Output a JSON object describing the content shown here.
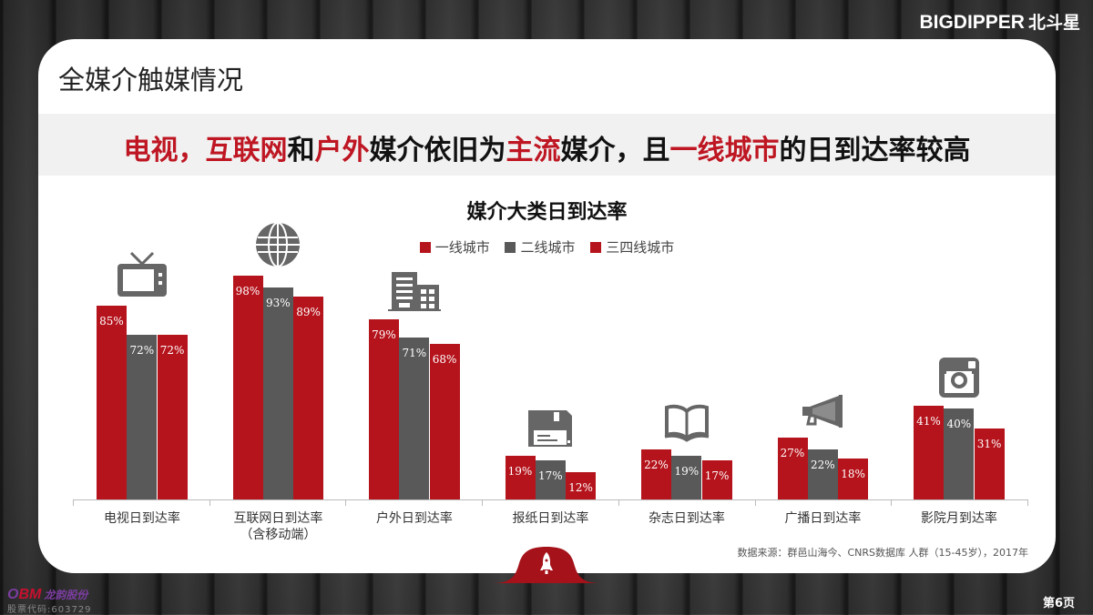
{
  "brand": {
    "latin": "BIGDIPPER",
    "cn": "北斗星"
  },
  "slide": {
    "title": "全媒介触媒情况",
    "headline": [
      {
        "text": "电视，",
        "highlight": true
      },
      {
        "text": "互联网",
        "highlight": true
      },
      {
        "text": "和",
        "highlight": false
      },
      {
        "text": "户外",
        "highlight": true
      },
      {
        "text": "媒介依旧为",
        "highlight": false
      },
      {
        "text": "主流",
        "highlight": true
      },
      {
        "text": "媒介，且",
        "highlight": false
      },
      {
        "text": "一线城市",
        "highlight": true
      },
      {
        "text": "的日到达率较高",
        "highlight": false
      }
    ],
    "source": "数据来源：群邑山海今、CNRS数据库 人群（15-45岁），2017年",
    "page": "第6页"
  },
  "footer_logo": {
    "mark": "OBM",
    "name": "龙韵股份",
    "code": "股票代码:603729"
  },
  "colors": {
    "tier1": "#b5141c",
    "tier2": "#595959",
    "tier3": "#b5141c",
    "highlight": "#be1622",
    "icon": "#666666"
  },
  "chart_data": {
    "type": "bar",
    "title": "媒介大类日到达率",
    "xlabel": "",
    "ylabel": "",
    "ylim": [
      0,
      100
    ],
    "grid": false,
    "legend_position": "top",
    "categories": [
      "电视日到达率",
      "互联网日到达率（含移动端）",
      "户外日到达率",
      "报纸日到达率",
      "杂志日到达率",
      "广播日到达率",
      "影院月到达率"
    ],
    "category_lines": [
      [
        "电视日到达率"
      ],
      [
        "互联网日到达率",
        "（含移动端）"
      ],
      [
        "户外日到达率"
      ],
      [
        "报纸日到达率"
      ],
      [
        "杂志日到达率"
      ],
      [
        "广播日到达率"
      ],
      [
        "影院月到达率"
      ]
    ],
    "category_icons": [
      "tv-icon",
      "globe-icon",
      "building-icon",
      "floppy-disk-icon",
      "book-icon",
      "megaphone-icon",
      "camera-icon"
    ],
    "series": [
      {
        "name": "一线城市",
        "values": [
          85,
          98,
          79,
          19,
          22,
          27,
          41
        ]
      },
      {
        "name": "二线城市",
        "values": [
          72,
          93,
          71,
          17,
          19,
          22,
          40
        ]
      },
      {
        "name": "三四线城市",
        "values": [
          72,
          89,
          68,
          12,
          17,
          18,
          31
        ]
      }
    ],
    "value_labels": [
      [
        "85%",
        "98%",
        "79%",
        "19%",
        "22%",
        "27%",
        "41%"
      ],
      [
        "72%",
        "93%",
        "71%",
        "17%",
        "19%",
        "22%",
        "40%"
      ],
      [
        "72%",
        "89%",
        "68%",
        "12%",
        "17%",
        "18%",
        "31%"
      ]
    ]
  }
}
